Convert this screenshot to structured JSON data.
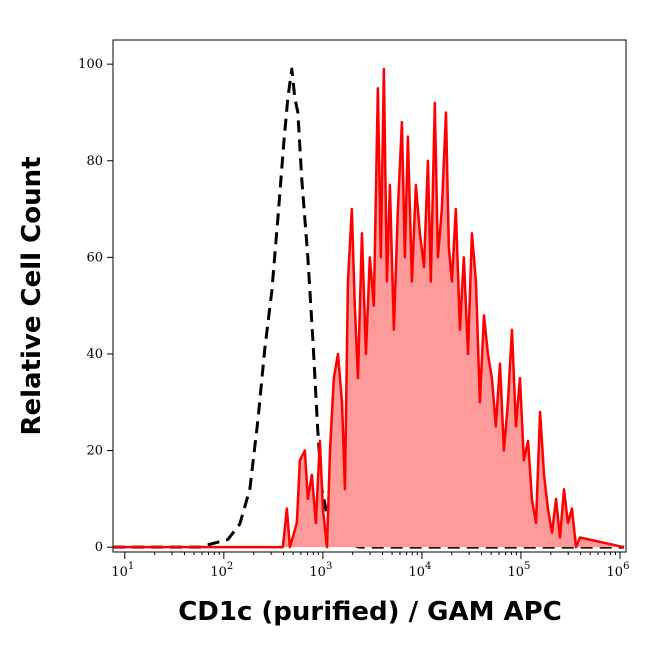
{
  "chart_data": {
    "type": "histogram-overlay",
    "x_label": "CD1c (purified) / GAM APC",
    "y_label": "Relative Cell Count",
    "xlog": true,
    "xlim": [
      7.6,
      1150000
    ],
    "ylim": [
      -1,
      105
    ],
    "xticks": [
      {
        "value": 10,
        "label": "10",
        "power": "1"
      },
      {
        "value": 100,
        "label": "10",
        "power": "2"
      },
      {
        "value": 1000,
        "label": "10",
        "power": "3"
      },
      {
        "value": 10000,
        "label": "10",
        "power": "4"
      },
      {
        "value": 100000,
        "label": "10",
        "power": "5"
      },
      {
        "value": 1000000,
        "label": "10",
        "power": "6"
      }
    ],
    "yticks": [
      0,
      20,
      40,
      60,
      80,
      100
    ],
    "series": [
      {
        "color": "#000000",
        "dashed": true,
        "filled": false,
        "x": [
          7.6,
          17.9,
          57,
          110,
          145,
          183,
          220,
          259,
          305,
          351,
          404,
          443,
          486,
          521,
          559,
          613,
          705,
          792,
          889,
          977,
          1120,
          1320,
          1560,
          1870,
          2370,
          1100000
        ],
        "values": [
          0,
          0,
          0,
          1.6,
          4.8,
          12,
          26,
          41,
          53,
          68,
          84,
          93,
          99,
          93,
          90,
          76,
          60,
          43,
          24,
          12,
          6,
          5,
          3,
          0.6,
          0,
          0
        ]
      },
      {
        "color": "#ff0000",
        "fill": "#ff9a9a",
        "dashed": false,
        "filled": true,
        "x": [
          7.6,
          394,
          433,
          464,
          546,
          586,
          658,
          705,
          774,
          849,
          933,
          1000,
          1100,
          1180,
          1290,
          1420,
          1560,
          1670,
          1790,
          1960,
          2100,
          2260,
          2480,
          2720,
          2980,
          3270,
          3590,
          3850,
          4130,
          4430,
          4750,
          5210,
          5720,
          6280,
          6730,
          7220,
          7920,
          8690,
          9540,
          10500,
          11500,
          12300,
          13500,
          14500,
          15900,
          17500,
          18700,
          20100,
          22000,
          24200,
          26500,
          29200,
          32000,
          35100,
          38500,
          42300,
          46400,
          50900,
          55800,
          61400,
          67300,
          73900,
          81100,
          89000,
          97700,
          107000,
          118000,
          129000,
          142000,
          156000,
          171000,
          187000,
          206000,
          226000,
          248000,
          272000,
          298000,
          327000,
          360000,
          394000,
          1100000
        ],
        "values": [
          0,
          0,
          8,
          0,
          5,
          18,
          20,
          10,
          15,
          5,
          22,
          8,
          0,
          20,
          35,
          40,
          30,
          12,
          55,
          70,
          50,
          35,
          65,
          40,
          60,
          50,
          95,
          60,
          99,
          55,
          75,
          45,
          70,
          88,
          60,
          85,
          55,
          75,
          65,
          58,
          80,
          55,
          92,
          60,
          70,
          90,
          62,
          55,
          70,
          45,
          60,
          40,
          65,
          55,
          30,
          48,
          40,
          35,
          25,
          38,
          20,
          30,
          45,
          25,
          35,
          18,
          22,
          10,
          5,
          28,
          15,
          8,
          3,
          10,
          2,
          12,
          5,
          8,
          0,
          2,
          0
        ]
      }
    ]
  }
}
